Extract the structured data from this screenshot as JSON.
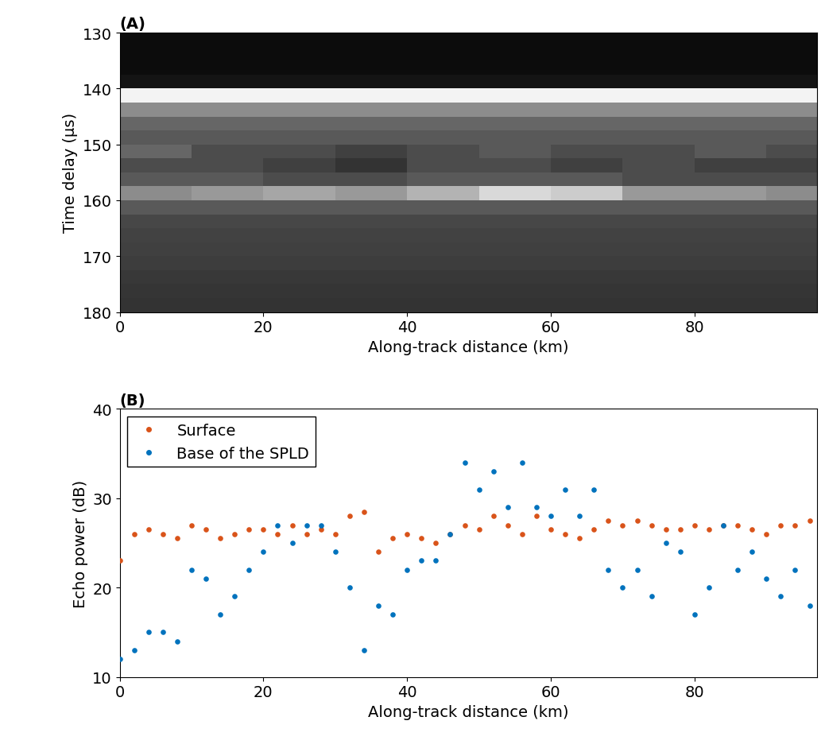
{
  "chart_data": [
    {
      "type": "heatmap",
      "annotations": [
        "(A)"
      ],
      "x_label": "Along-track distance (km)",
      "y_label": "Time delay (μs)",
      "xlim": [
        0,
        97
      ],
      "xticks": [
        0,
        20,
        40,
        60,
        80
      ],
      "ylim": [
        180,
        130
      ],
      "yticks": [
        130,
        140,
        150,
        160,
        170,
        180
      ],
      "color": "gray",
      "color_range": [
        0,
        1
      ],
      "x_edges": [
        0,
        10,
        20,
        30,
        40,
        50,
        60,
        70,
        80,
        90,
        97
      ],
      "y_edges": [
        130,
        132.5,
        135,
        137.5,
        140,
        142.5,
        145,
        147.5,
        150,
        152.5,
        155,
        157.5,
        160,
        162.5,
        165,
        167.5,
        170,
        172.5,
        175,
        177.5,
        180
      ],
      "cells": [
        [
          0.05,
          0.05,
          0.05,
          0.05,
          0.05,
          0.05,
          0.05,
          0.05,
          0.05,
          0.05
        ],
        [
          0.05,
          0.05,
          0.05,
          0.05,
          0.05,
          0.05,
          0.05,
          0.05,
          0.05,
          0.05
        ],
        [
          0.05,
          0.05,
          0.05,
          0.05,
          0.05,
          0.05,
          0.05,
          0.05,
          0.05,
          0.05
        ],
        [
          0.08,
          0.08,
          0.08,
          0.08,
          0.08,
          0.08,
          0.08,
          0.08,
          0.08,
          0.08
        ],
        [
          0.95,
          0.95,
          0.95,
          0.95,
          0.95,
          0.95,
          0.95,
          0.95,
          0.95,
          0.95
        ],
        [
          0.55,
          0.55,
          0.55,
          0.55,
          0.55,
          0.55,
          0.55,
          0.55,
          0.55,
          0.55
        ],
        [
          0.4,
          0.4,
          0.4,
          0.4,
          0.4,
          0.4,
          0.4,
          0.4,
          0.4,
          0.4
        ],
        [
          0.35,
          0.35,
          0.35,
          0.35,
          0.35,
          0.35,
          0.35,
          0.35,
          0.35,
          0.35
        ],
        [
          0.4,
          0.3,
          0.3,
          0.25,
          0.3,
          0.35,
          0.3,
          0.3,
          0.35,
          0.3
        ],
        [
          0.3,
          0.3,
          0.25,
          0.2,
          0.3,
          0.3,
          0.25,
          0.3,
          0.25,
          0.25
        ],
        [
          0.35,
          0.35,
          0.3,
          0.3,
          0.35,
          0.35,
          0.35,
          0.3,
          0.3,
          0.3
        ],
        [
          0.55,
          0.6,
          0.65,
          0.6,
          0.7,
          0.85,
          0.8,
          0.6,
          0.6,
          0.55
        ],
        [
          0.35,
          0.35,
          0.35,
          0.35,
          0.35,
          0.35,
          0.35,
          0.35,
          0.35,
          0.35
        ],
        [
          0.28,
          0.28,
          0.28,
          0.28,
          0.28,
          0.28,
          0.28,
          0.28,
          0.28,
          0.28
        ],
        [
          0.26,
          0.26,
          0.26,
          0.26,
          0.26,
          0.26,
          0.26,
          0.26,
          0.26,
          0.26
        ],
        [
          0.25,
          0.25,
          0.25,
          0.25,
          0.25,
          0.25,
          0.25,
          0.25,
          0.25,
          0.25
        ],
        [
          0.24,
          0.24,
          0.24,
          0.24,
          0.24,
          0.24,
          0.24,
          0.24,
          0.24,
          0.24
        ],
        [
          0.22,
          0.22,
          0.22,
          0.22,
          0.22,
          0.22,
          0.22,
          0.22,
          0.22,
          0.22
        ],
        [
          0.21,
          0.21,
          0.21,
          0.21,
          0.21,
          0.21,
          0.21,
          0.21,
          0.21,
          0.21
        ],
        [
          0.2,
          0.2,
          0.2,
          0.2,
          0.2,
          0.2,
          0.2,
          0.2,
          0.2,
          0.2
        ]
      ]
    },
    {
      "type": "scatter",
      "annotations": [
        "(B)"
      ],
      "x_label": "Along-track distance (km)",
      "y_label": "Echo power (dB)",
      "xlim": [
        0,
        97
      ],
      "xticks": [
        0,
        20,
        40,
        60,
        80
      ],
      "ylim": [
        10,
        40
      ],
      "yticks": [
        10,
        20,
        30,
        40
      ],
      "legend": "upper left",
      "x": [
        0,
        2,
        4,
        6,
        8,
        10,
        12,
        14,
        16,
        18,
        20,
        22,
        24,
        26,
        28,
        30,
        32,
        34,
        36,
        38,
        40,
        42,
        44,
        46,
        48,
        50,
        52,
        54,
        56,
        58,
        60,
        62,
        64,
        66,
        68,
        70,
        72,
        74,
        76,
        78,
        80,
        82,
        84,
        86,
        88,
        90,
        92,
        94,
        96
      ],
      "series": [
        {
          "name": "Surface",
          "color": "#D95319",
          "marker": "o",
          "values": [
            23,
            26,
            26.5,
            26,
            25.5,
            27,
            26.5,
            25.5,
            26,
            26.5,
            26.5,
            26,
            27,
            26,
            26.5,
            26,
            28,
            28.5,
            24,
            25.5,
            26,
            25.5,
            25,
            26,
            27,
            26.5,
            28,
            27,
            26,
            28,
            26.5,
            26,
            25.5,
            26.5,
            27.5,
            27,
            27.5,
            27,
            26.5,
            26.5,
            27,
            26.5,
            27,
            27,
            26.5,
            26,
            27,
            27,
            27.5
          ]
        },
        {
          "name": "Base of the SPLD",
          "color": "#0072BD",
          "marker": "o",
          "values": [
            12,
            13,
            15,
            15,
            14,
            22,
            21,
            17,
            19,
            22,
            24,
            27,
            25,
            27,
            27,
            24,
            20,
            13,
            18,
            17,
            22,
            23,
            23,
            26,
            34,
            31,
            33,
            29,
            34,
            29,
            28,
            31,
            28,
            31,
            22,
            20,
            22,
            19,
            25,
            24,
            17,
            20,
            27,
            22,
            24,
            21,
            19,
            22,
            18
          ]
        }
      ]
    }
  ]
}
